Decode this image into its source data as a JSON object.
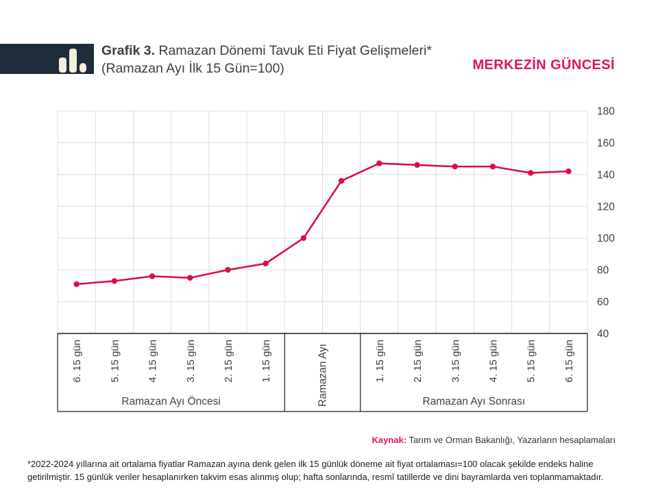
{
  "header": {
    "title_prefix": "Grafik 3.",
    "title_rest": " Ramazan Dönemi Tavuk Eti Fiyat Gelişmeleri*",
    "subtitle": "(Ramazan Ayı İlk 15 Gün=100)",
    "brand": "MERKEZİN GÜNCESİ",
    "logo_icon": "bar-chart-icon"
  },
  "colors": {
    "accent": "#e2164e",
    "line": "#d90f43",
    "navy": "#1e2c3c",
    "grid": "#dcdcdc",
    "axis": "#1a1a1a",
    "tick_text": "#3f3f3f"
  },
  "chart_data": {
    "type": "line",
    "title": "Grafik 3. Ramazan Dönemi Tavuk Eti Fiyat Gelişmeleri* (Ramazan Ayı İlk 15 Gün=100)",
    "xlabel": "",
    "ylabel": "",
    "ylim": [
      40,
      180
    ],
    "yticks": [
      180,
      160,
      140,
      120,
      100,
      80,
      60,
      40
    ],
    "grid": true,
    "legend": "none",
    "series_color": "#d90f43",
    "groups": [
      {
        "label": "Ramazan Ayı Öncesi",
        "label_rotated": false,
        "tick_labels": [
          "6. 15 gün",
          "5. 15 gün",
          "4. 15 gün",
          "3. 15 gün",
          "2. 15 gün",
          "1. 15 gün"
        ],
        "values": [
          71,
          73,
          76,
          75,
          80,
          84
        ]
      },
      {
        "label": "Ramazan Ayı",
        "label_rotated": true,
        "tick_labels": [],
        "values": [
          100,
          136
        ]
      },
      {
        "label": "Ramazan Ayı Sonrası",
        "label_rotated": false,
        "tick_labels": [
          "1. 15 gün",
          "2. 15 gün",
          "3. 15 gün",
          "4. 15 gün",
          "5. 15 gün",
          "6. 15 gün"
        ],
        "values": [
          147,
          146,
          145,
          145,
          141,
          142
        ]
      }
    ]
  },
  "source": {
    "label": "Kaynak:",
    "text": " Tarım ve Orman Bakanlığı, Yazarların hesaplamaları"
  },
  "footnote": {
    "line1": "*2022-2024 yıllarına ait ortalama fiyatlar Ramazan ayına denk gelen ilk 15 günlük döneme ait fiyat ortalaması=100 olacak şekilde endeks haline",
    "line2": "getirilmiştir. 15 günlük veriler hesaplanırken takvim esas alınmış olup; hafta sonlarında, resmî tatillerde ve dini bayramlarda veri toplanmamaktadır."
  }
}
